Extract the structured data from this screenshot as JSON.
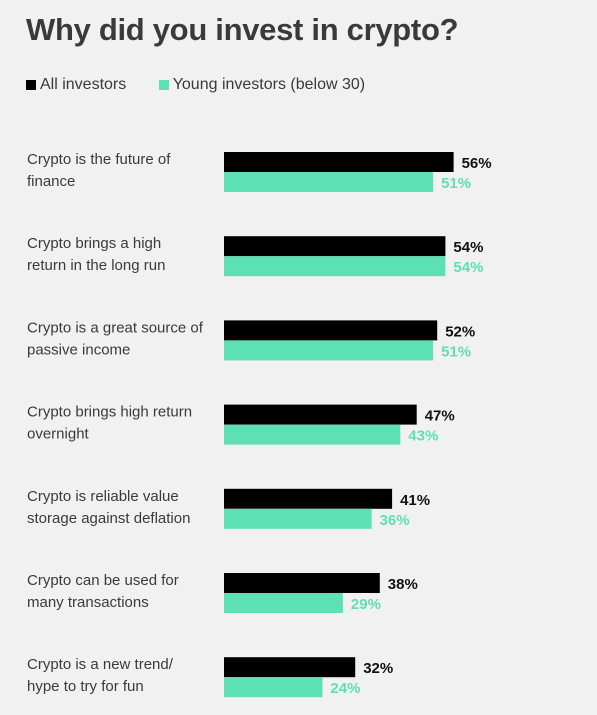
{
  "chart_data": {
    "type": "bar",
    "orientation": "horizontal",
    "title": "Why did you invest in crypto?",
    "categories": [
      [
        "Crypto is the future of",
        "finance"
      ],
      [
        "Crypto brings a high",
        "return in the long run"
      ],
      [
        "Crypto is a great source of",
        "passive income"
      ],
      [
        "Crypto brings high return",
        "overnight"
      ],
      [
        "Crypto is reliable value",
        "storage against deflation"
      ],
      [
        "Crypto can be used for",
        "many transactions"
      ],
      [
        "Crypto is a new trend/",
        "hype to try for fun"
      ]
    ],
    "series": [
      {
        "name": "All investors",
        "color": "#000000",
        "label_color": "#111111",
        "values": [
          56,
          54,
          52,
          47,
          41,
          38,
          32
        ]
      },
      {
        "name": "Young investors (below 30)",
        "color": "#5ce0b4",
        "label_color": "#5ce0b4",
        "values": [
          51,
          54,
          51,
          43,
          36,
          29,
          24
        ]
      }
    ],
    "value_suffix": "%",
    "legend_position": "top-left",
    "grid": false,
    "xlim": [
      0,
      100
    ]
  }
}
